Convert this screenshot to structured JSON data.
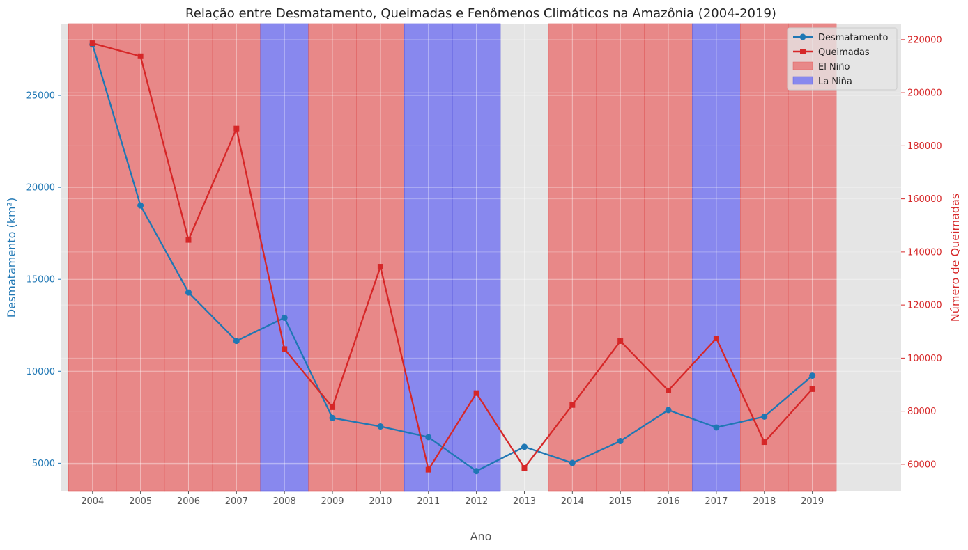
{
  "chart_data": {
    "type": "line",
    "title": "Relação entre Desmatamento, Queimadas e Fenômenos Climáticos na Amazônia (2004-2019)",
    "xlabel": "Ano",
    "ylabel_left": "Desmatamento (km²)",
    "ylabel_right": "Número de Queimadas",
    "x": [
      2004,
      2005,
      2006,
      2007,
      2008,
      2009,
      2010,
      2011,
      2012,
      2013,
      2014,
      2015,
      2016,
      2017,
      2018,
      2019
    ],
    "xlim": [
      2003.35,
      2020.85
    ],
    "ylim_left": [
      3500,
      28900
    ],
    "ylim_right": [
      50000,
      226000
    ],
    "yticks_left": [
      5000,
      10000,
      15000,
      20000,
      25000
    ],
    "yticks_right": [
      60000,
      80000,
      100000,
      120000,
      140000,
      160000,
      180000,
      200000,
      220000
    ],
    "grid": true,
    "legend_position": "top-right",
    "series": [
      {
        "name": "Desmatamento",
        "axis": "left",
        "marker": "circle",
        "color": "#1f77b4",
        "values": [
          27772,
          19014,
          14286,
          11651,
          12911,
          7464,
          7000,
          6418,
          4571,
          5891,
          5012,
          6207,
          7893,
          6947,
          7536,
          9762
        ]
      },
      {
        "name": "Queimadas",
        "axis": "right",
        "marker": "square",
        "color": "#d62728",
        "values": [
          218637,
          213720,
          144531,
          186480,
          103396,
          81511,
          134447,
          57966,
          86806,
          58651,
          82344,
          106410,
          87785,
          107439,
          68345,
          88322
        ]
      }
    ],
    "climate_phenomena": {
      "el_nino_label": "El Niño",
      "la_nina_label": "La Niña",
      "el_nino_color": "#e88888",
      "la_nina_color": "#8888ee",
      "years": [
        {
          "year": 2004,
          "phenomenon": "El Niño"
        },
        {
          "year": 2005,
          "phenomenon": "El Niño"
        },
        {
          "year": 2006,
          "phenomenon": "El Niño"
        },
        {
          "year": 2007,
          "phenomenon": "El Niño"
        },
        {
          "year": 2008,
          "phenomenon": "La Niña"
        },
        {
          "year": 2009,
          "phenomenon": "El Niño"
        },
        {
          "year": 2010,
          "phenomenon": "El Niño"
        },
        {
          "year": 2011,
          "phenomenon": "La Niña"
        },
        {
          "year": 2012,
          "phenomenon": "La Niña"
        },
        {
          "year": 2014,
          "phenomenon": "El Niño"
        },
        {
          "year": 2015,
          "phenomenon": "El Niño"
        },
        {
          "year": 2016,
          "phenomenon": "El Niño"
        },
        {
          "year": 2017,
          "phenomenon": "La Niña"
        },
        {
          "year": 2018,
          "phenomenon": "El Niño"
        },
        {
          "year": 2019,
          "phenomenon": "El Niño"
        }
      ]
    },
    "colors": {
      "plot_background": "#e5e5e5",
      "grid": "#ffffff",
      "left_axis": "#1f77b4",
      "right_axis": "#d62728"
    }
  }
}
